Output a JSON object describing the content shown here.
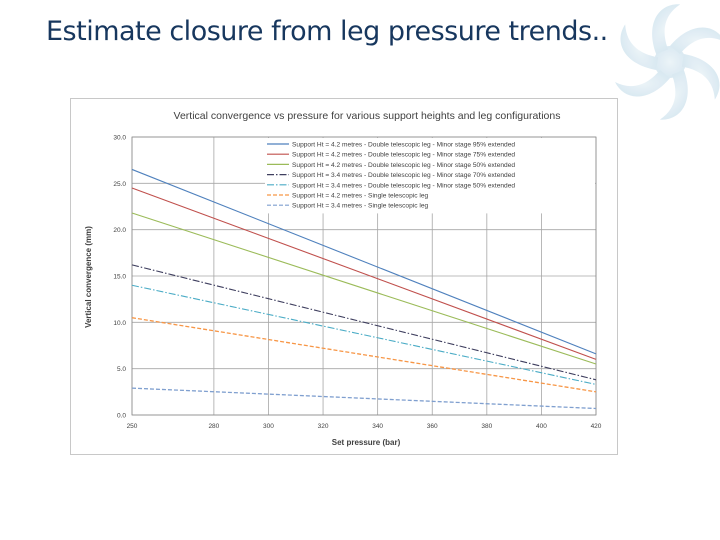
{
  "slide": {
    "title": "Estimate closure from leg pressure trends.."
  },
  "colors": {
    "title": "#17375e",
    "grid": "#a6a6a6",
    "axis_text": "#404040"
  },
  "chart_data": {
    "type": "line",
    "title": "Vertical convergence vs pressure for various support heights and leg configurations",
    "xlabel": "Set pressure (bar)",
    "ylabel": "Vertical convergence (mm)",
    "xlim": [
      250,
      420
    ],
    "ylim": [
      0,
      30
    ],
    "x_ticks": [
      250,
      280,
      300,
      320,
      340,
      360,
      380,
      400,
      420
    ],
    "x_tick_labels": [
      "250",
      "280",
      "300",
      "320",
      "340",
      "360",
      "380",
      "400",
      "420"
    ],
    "y_ticks": [
      0,
      5,
      10,
      15,
      20,
      25,
      30
    ],
    "y_tick_labels": [
      "0.0",
      "5.0",
      "10.0",
      "15.0",
      "20.0",
      "25.0",
      "30.0"
    ],
    "legend_position": "top-right",
    "series": [
      {
        "name": "Support Ht = 4.2 metres - Double telescopic leg - Minor stage 95% extended",
        "color": "#4f81bd",
        "dash": "solid",
        "x": [
          250,
          420
        ],
        "y": [
          26.5,
          6.6
        ]
      },
      {
        "name": "Support Ht = 4.2 metres - Double telescopic leg - Minor stage 75% extended",
        "color": "#c0504d",
        "dash": "solid",
        "x": [
          250,
          420
        ],
        "y": [
          24.5,
          6.0
        ]
      },
      {
        "name": "Support Ht = 4.2 metres - Double telescopic leg - Minor stage 50% extended",
        "color": "#9bbb59",
        "dash": "solid",
        "x": [
          250,
          420
        ],
        "y": [
          21.8,
          5.5
        ]
      },
      {
        "name": "Support Ht = 3.4 metres - Double telescopic leg - Minor stage 70% extended",
        "color": "#3f3f5f",
        "dash": "dashdot",
        "x": [
          250,
          420
        ],
        "y": [
          16.2,
          3.8
        ]
      },
      {
        "name": "Support Ht = 3.4 metres - Double telescopic leg - Minor stage 50% extended",
        "color": "#4bacc6",
        "dash": "dashdot",
        "x": [
          250,
          420
        ],
        "y": [
          14.0,
          3.3
        ]
      },
      {
        "name": "Support Ht = 4.2 metres - Single telescopic leg",
        "color": "#f79646",
        "dash": "dash",
        "x": [
          250,
          420
        ],
        "y": [
          10.5,
          2.5
        ]
      },
      {
        "name": "Support Ht = 3.4 metres - Single telescopic leg",
        "color": "#7f9fcf",
        "dash": "dash",
        "x": [
          250,
          420
        ],
        "y": [
          2.9,
          0.7
        ]
      }
    ]
  }
}
